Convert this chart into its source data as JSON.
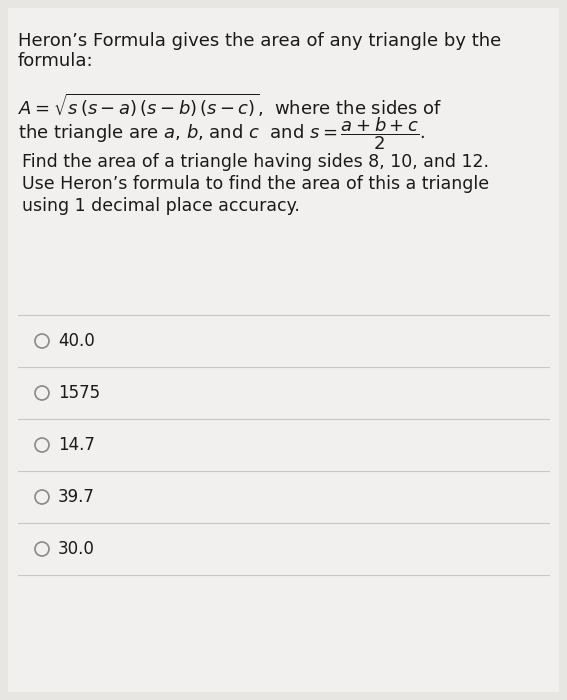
{
  "bg_color": "#e8e6e3",
  "content_bg": "#f5f4f2",
  "text_color": "#1a1a1a",
  "gray_color": "#888888",
  "line_color": "#c8c8c8",
  "title_text": "Heron’s Formula gives the area of any triangle by the\nformula:",
  "question_text": "Find the area of a triangle having sides 8, 10, and 12.\nUse Heron’s formula to find the area of this a triangle\nusing 1 decimal place accuracy.",
  "options": [
    "40.0",
    "1575",
    "14.7",
    "39.7",
    "30.0"
  ],
  "title_fontsize": 13.0,
  "formula_fontsize": 13.0,
  "question_fontsize": 12.5,
  "option_fontsize": 12.0
}
